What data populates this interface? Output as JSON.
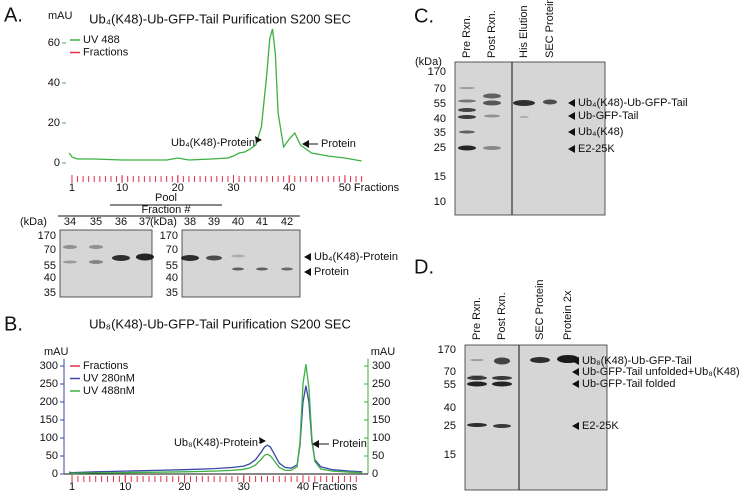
{
  "panels": {
    "a": "A.",
    "b": "B.",
    "c": "C.",
    "d": "D."
  },
  "chart_data": [
    {
      "type": "line",
      "title": "Ub₄(K48)-Ub-GFP-Tail Purification S200 SEC",
      "ylabel": "mAU",
      "xlabel": "Fractions",
      "x": [
        0.5,
        1,
        2,
        5,
        10,
        15,
        18,
        20,
        22,
        26,
        29,
        30,
        31,
        32,
        33,
        34,
        35,
        36,
        36.5,
        37,
        37.5,
        38,
        39,
        40,
        41,
        42,
        44,
        47,
        50,
        53
      ],
      "series": [
        {
          "name": "UV 488",
          "color": "#3cb043",
          "values": [
            5,
            3,
            2,
            2,
            1.5,
            1.5,
            1.5,
            2.5,
            1.5,
            2,
            2.5,
            3.5,
            5,
            5.5,
            7,
            9,
            18,
            45,
            62,
            67,
            55,
            25,
            8,
            12,
            15,
            9,
            5,
            3.5,
            2.5,
            1
          ]
        }
      ],
      "fractions": {
        "name": "Fractions",
        "color": "#e0304a"
      },
      "xlim": [
        0,
        54
      ],
      "xticks": [
        1,
        10,
        20,
        30,
        40,
        50
      ],
      "ylim": [
        -5,
        68
      ],
      "yticks": [
        0,
        20,
        40,
        60
      ],
      "annotations": [
        "Ub₄(K48)-Protein",
        "Protein"
      ]
    },
    {
      "type": "line",
      "title": "Ub₈(K48)-Ub-GFP-Tail Purification S200 SEC",
      "ylabel": "mAU",
      "y2label": "mAU",
      "xlabel": "Fractions",
      "x": [
        0.5,
        1,
        5,
        10,
        15,
        20,
        25,
        28,
        30,
        31,
        32,
        33,
        33.5,
        34,
        34.5,
        35,
        36,
        37,
        38,
        39,
        39.5,
        40,
        40.5,
        41,
        41.5,
        42,
        43,
        45,
        48,
        50
      ],
      "fractions": {
        "name": "Fractions",
        "color": "#e0304a"
      },
      "series": [
        {
          "name": "UV 280nM",
          "color": "#3a48a8",
          "values": [
            5,
            4,
            6,
            8,
            10,
            12,
            15,
            18,
            22,
            28,
            40,
            62,
            75,
            80,
            75,
            60,
            30,
            18,
            16,
            25,
            80,
            200,
            245,
            200,
            90,
            40,
            20,
            12,
            8,
            6
          ]
        },
        {
          "name": "UV 488nM",
          "color": "#3cb043",
          "axis": "y2",
          "values": [
            3,
            2,
            3,
            4,
            5,
            6,
            8,
            10,
            13,
            17,
            25,
            42,
            52,
            55,
            50,
            40,
            18,
            10,
            10,
            20,
            90,
            250,
            305,
            240,
            100,
            35,
            14,
            8,
            5,
            4
          ]
        }
      ],
      "xlim": [
        0,
        50
      ],
      "xticks": [
        1,
        10,
        20,
        30,
        40
      ],
      "ylim": [
        0,
        320
      ],
      "yticks": [
        0,
        50,
        100,
        150,
        200,
        250,
        300
      ],
      "y2lim": [
        0,
        320
      ],
      "y2ticks": [
        0,
        50,
        100,
        150,
        200,
        250,
        300
      ],
      "annotations": [
        "Ub₈(K48)-Protein",
        "Protein"
      ]
    }
  ],
  "gels": {
    "a": {
      "kda_left": "(kDa)",
      "markers_left": [
        "170",
        "70",
        "55",
        "40",
        "35"
      ],
      "lanes_left": [
        "34",
        "35",
        "36",
        "37"
      ],
      "kda_right": "(kDa)",
      "markers_right": [
        "170",
        "70",
        "55",
        "40",
        "35"
      ],
      "lanes_right": [
        "38",
        "39",
        "40",
        "41",
        "42"
      ],
      "pool": "Pool",
      "fraction": "Fraction #",
      "bands": [
        "Ub₄(K48)-Protein",
        "Protein"
      ]
    },
    "c": {
      "kda": "(kDa)",
      "markers": [
        "170",
        "70",
        "55",
        "40",
        "35",
        "25",
        "15",
        "10"
      ],
      "lanes": [
        "Pre Rxn.",
        "Post Rxn.",
        "His Elution",
        "SEC Protein"
      ],
      "bands": [
        "Ub₄(K48)-Ub-GFP-Tail",
        "Ub-GFP-Tail",
        "Ub₄(K48)",
        "E2-25K"
      ]
    },
    "d": {
      "markers": [
        "170",
        "70",
        "55",
        "40",
        "25",
        "15"
      ],
      "lanes": [
        "Pre Rxn.",
        "Post Rxn.",
        "SEC Protein",
        "Protein 2x"
      ],
      "bands": [
        "Ub₈(K48)-Ub-GFP-Tail",
        "Ub-GFP-Tail unfolded+Ub₈(K48)",
        "Ub-GFP-Tail folded",
        "E2-25K"
      ]
    }
  }
}
